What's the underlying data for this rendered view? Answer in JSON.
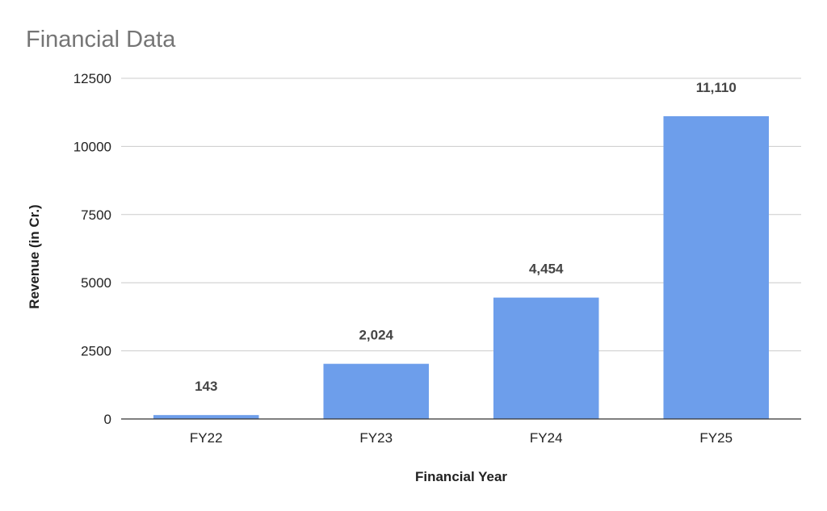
{
  "chart_data": {
    "type": "bar",
    "title": "Financial Data",
    "xlabel": "Financial Year",
    "ylabel": "Revenue (in Cr.)",
    "categories": [
      "FY22",
      "FY23",
      "FY24",
      "FY25"
    ],
    "values": [
      143,
      2024,
      4454,
      11110
    ],
    "data_labels": [
      "143",
      "2,024",
      "4,454",
      "11,110"
    ],
    "ylim": [
      0,
      12500
    ],
    "yticks": [
      0,
      2500,
      5000,
      7500,
      10000,
      12500
    ],
    "ytick_labels": [
      "0",
      "2500",
      "5000",
      "7500",
      "10000",
      "12500"
    ],
    "grid": true,
    "legend": "none",
    "colors": {
      "bar": "#6d9eeb",
      "gridline": "#cccccc",
      "axis": "#333333",
      "title": "#757575"
    }
  }
}
